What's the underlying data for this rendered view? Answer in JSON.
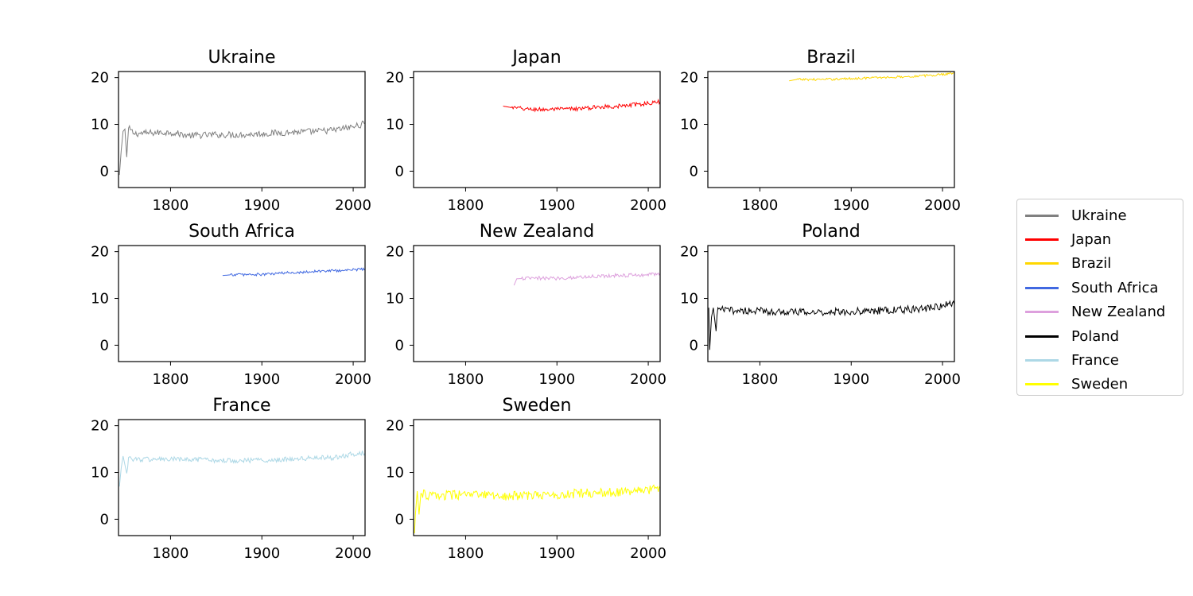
{
  "chart_data": {
    "type": "line",
    "layout": "small-multiples",
    "x_range": [
      1743,
      2013
    ],
    "y_range": [
      -3.5,
      21.3
    ],
    "x_ticks": [
      1800,
      1900,
      2000
    ],
    "y_ticks": [
      0,
      10,
      20
    ],
    "legend_position": "right",
    "grid": false,
    "series": [
      {
        "name": "Ukraine",
        "color": "#808080",
        "start_year": 1744,
        "end_year": 2013,
        "keyframes": [
          [
            1744,
            -0.8
          ],
          [
            1746,
            4.5
          ],
          [
            1748,
            8.5
          ],
          [
            1750,
            9.0
          ],
          [
            1752,
            3.0
          ],
          [
            1754,
            9.2
          ],
          [
            1760,
            8.0
          ],
          [
            1780,
            8.2
          ],
          [
            1800,
            8.3
          ],
          [
            1820,
            7.6
          ],
          [
            1850,
            7.8
          ],
          [
            1880,
            7.8
          ],
          [
            1900,
            8.0
          ],
          [
            1930,
            8.3
          ],
          [
            1960,
            8.5
          ],
          [
            1980,
            8.8
          ],
          [
            2000,
            9.5
          ],
          [
            2013,
            10.2
          ]
        ],
        "noise": 0.7
      },
      {
        "name": "Japan",
        "color": "#ff0000",
        "start_year": 1841,
        "end_year": 2013,
        "keyframes": [
          [
            1841,
            13.9
          ],
          [
            1850,
            13.6
          ],
          [
            1870,
            13.2
          ],
          [
            1900,
            13.2
          ],
          [
            1930,
            13.4
          ],
          [
            1950,
            13.8
          ],
          [
            1970,
            13.9
          ],
          [
            1990,
            14.3
          ],
          [
            2013,
            14.8
          ]
        ],
        "noise": 0.45
      },
      {
        "name": "Brazil",
        "color": "#ffd700",
        "start_year": 1832,
        "end_year": 2013,
        "keyframes": [
          [
            1832,
            19.3
          ],
          [
            1840,
            19.6
          ],
          [
            1870,
            19.6
          ],
          [
            1900,
            19.8
          ],
          [
            1930,
            20.0
          ],
          [
            1960,
            20.2
          ],
          [
            1990,
            20.5
          ],
          [
            2013,
            21.0
          ]
        ],
        "noise": 0.25
      },
      {
        "name": "South Africa",
        "color": "#4169e1",
        "start_year": 1857,
        "end_year": 2013,
        "keyframes": [
          [
            1857,
            14.9
          ],
          [
            1870,
            15.1
          ],
          [
            1900,
            15.1
          ],
          [
            1930,
            15.5
          ],
          [
            1960,
            15.8
          ],
          [
            1990,
            16.0
          ],
          [
            2013,
            16.3
          ]
        ],
        "noise": 0.3
      },
      {
        "name": "New Zealand",
        "color": "#dda0dd",
        "start_year": 1853,
        "end_year": 2013,
        "keyframes": [
          [
            1853,
            12.8
          ],
          [
            1856,
            14.2
          ],
          [
            1870,
            14.3
          ],
          [
            1900,
            14.3
          ],
          [
            1930,
            14.6
          ],
          [
            1960,
            14.9
          ],
          [
            1990,
            15.0
          ],
          [
            2013,
            15.3
          ]
        ],
        "noise": 0.4
      },
      {
        "name": "Poland",
        "color": "#000000",
        "start_year": 1744,
        "end_year": 2013,
        "keyframes": [
          [
            1744,
            8.0
          ],
          [
            1745,
            -1.0
          ],
          [
            1747,
            6.0
          ],
          [
            1749,
            8.0
          ],
          [
            1752,
            3.0
          ],
          [
            1754,
            8.0
          ],
          [
            1760,
            7.5
          ],
          [
            1800,
            7.3
          ],
          [
            1850,
            7.0
          ],
          [
            1900,
            7.2
          ],
          [
            1950,
            7.5
          ],
          [
            1980,
            7.8
          ],
          [
            2000,
            8.5
          ],
          [
            2013,
            8.7
          ]
        ],
        "noise": 0.8
      },
      {
        "name": "France",
        "color": "#add8e6",
        "start_year": 1744,
        "end_year": 2013,
        "keyframes": [
          [
            1744,
            7.0
          ],
          [
            1746,
            11.0
          ],
          [
            1748,
            13.5
          ],
          [
            1752,
            9.8
          ],
          [
            1754,
            13.2
          ],
          [
            1760,
            12.8
          ],
          [
            1800,
            12.8
          ],
          [
            1850,
            12.6
          ],
          [
            1900,
            12.6
          ],
          [
            1950,
            13.0
          ],
          [
            1980,
            13.2
          ],
          [
            2000,
            14.0
          ],
          [
            2013,
            14.2
          ]
        ],
        "noise": 0.55
      },
      {
        "name": "Sweden",
        "color": "#ffff00",
        "start_year": 1744,
        "end_year": 2013,
        "keyframes": [
          [
            1744,
            -3.0
          ],
          [
            1745,
            1.0
          ],
          [
            1747,
            6.0
          ],
          [
            1749,
            1.0
          ],
          [
            1751,
            5.5
          ],
          [
            1760,
            5.0
          ],
          [
            1800,
            5.2
          ],
          [
            1850,
            5.0
          ],
          [
            1900,
            5.2
          ],
          [
            1930,
            5.6
          ],
          [
            1960,
            5.7
          ],
          [
            1990,
            6.0
          ],
          [
            2013,
            6.6
          ]
        ],
        "noise": 1.0
      }
    ]
  }
}
